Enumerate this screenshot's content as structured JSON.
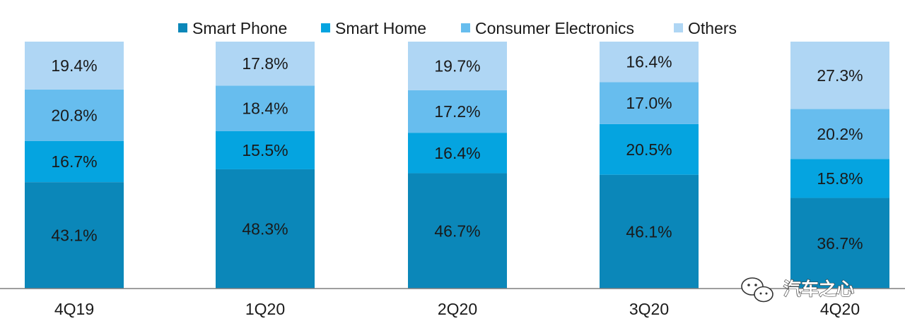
{
  "chart_data": {
    "type": "bar",
    "stacked": true,
    "categories": [
      "4Q19",
      "1Q20",
      "2Q20",
      "3Q20",
      "4Q20"
    ],
    "series": [
      {
        "name": "Smart Phone",
        "color": "#0B87B9",
        "values": [
          43.1,
          48.3,
          46.7,
          46.1,
          36.7
        ],
        "labels": [
          "43.1%",
          "48.3%",
          "46.7%",
          "46.1%",
          "36.7%"
        ]
      },
      {
        "name": "Smart Home",
        "color": "#05A4E0",
        "values": [
          16.7,
          15.5,
          16.4,
          20.5,
          15.8
        ],
        "labels": [
          "16.7%",
          "15.5%",
          "16.4%",
          "20.5%",
          "15.8%"
        ]
      },
      {
        "name": "Consumer Electronics",
        "color": "#67BDEE",
        "values": [
          20.8,
          18.4,
          17.2,
          17.0,
          20.2
        ],
        "labels": [
          "20.8%",
          "18.4%",
          "17.2%",
          "17.0%",
          "20.2%"
        ]
      },
      {
        "name": "Others",
        "color": "#AFD6F4",
        "values": [
          19.4,
          17.8,
          19.7,
          16.4,
          27.3
        ],
        "labels": [
          "19.4%",
          "17.8%",
          "19.7%",
          "16.4%",
          "27.3%"
        ]
      }
    ],
    "ylim": [
      0,
      100
    ],
    "legend_position": "top-center",
    "title": "",
    "xlabel": "",
    "ylabel": ""
  },
  "watermark": {
    "text": "汽车之心",
    "icon": "wechat-icon"
  }
}
